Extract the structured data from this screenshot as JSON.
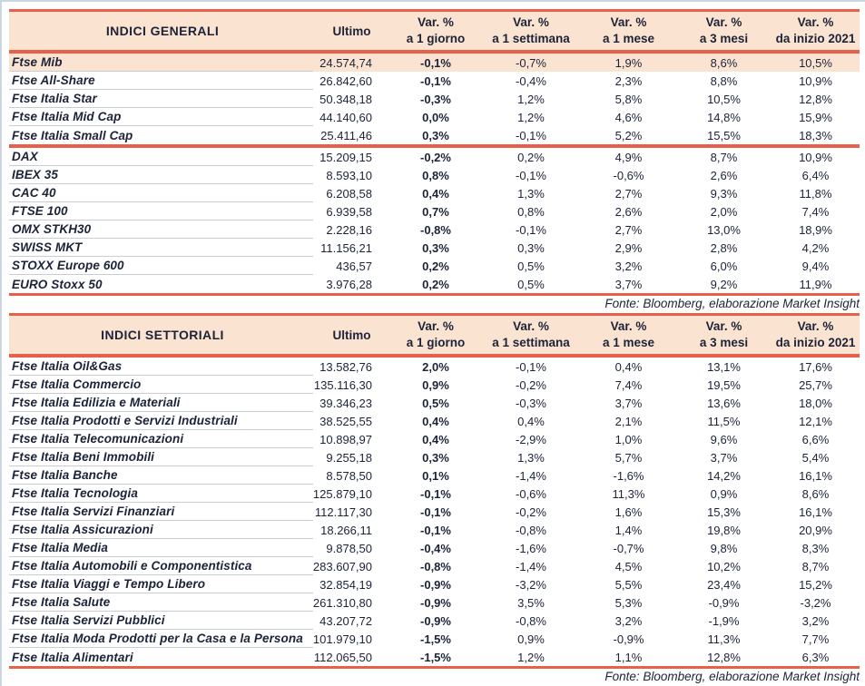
{
  "colors": {
    "accent": "#e6604a",
    "header_background": "#fbe3d2",
    "highlight_row_background": "#fbe3d2",
    "text": "#1c2338",
    "row_separator": "#c7ccd5",
    "frame": "#ccd6e3"
  },
  "columns": {
    "ultimo": "Ultimo",
    "vars": [
      {
        "line1": "Var. %",
        "line2": "a 1 giorno"
      },
      {
        "line1": "Var. %",
        "line2": "a 1 settimana"
      },
      {
        "line1": "Var. %",
        "line2": "a 1 mese"
      },
      {
        "line1": "Var. %",
        "line2": "a 3 mesi"
      },
      {
        "line1": "Var. %",
        "line2": "da inizio 2021"
      }
    ]
  },
  "tables": [
    {
      "title": "INDICI GENERALI",
      "source": "Fonte: Bloomberg, elaborazione Market Insight",
      "groups": [
        [
          {
            "name": "Ftse Mib",
            "highlight": true,
            "values": [
              "24.574,74",
              "-0,1%",
              "-0,7%",
              "1,9%",
              "8,6%",
              "10,5%"
            ]
          },
          {
            "name": "Ftse All-Share",
            "values": [
              "26.842,60",
              "-0,1%",
              "-0,4%",
              "2,3%",
              "8,8%",
              "10,9%"
            ]
          },
          {
            "name": "Ftse Italia Star",
            "values": [
              "50.348,18",
              "-0,3%",
              "1,2%",
              "5,8%",
              "10,5%",
              "12,8%"
            ]
          },
          {
            "name": "Ftse Italia Mid Cap",
            "values": [
              "44.140,60",
              "0,0%",
              "1,2%",
              "4,6%",
              "14,8%",
              "15,9%"
            ]
          },
          {
            "name": "Ftse Italia Small Cap",
            "values": [
              "25.411,46",
              "0,3%",
              "-0,1%",
              "5,2%",
              "15,5%",
              "18,3%"
            ]
          }
        ],
        [
          {
            "name": "DAX",
            "values": [
              "15.209,15",
              "-0,2%",
              "0,2%",
              "4,9%",
              "8,7%",
              "10,9%"
            ]
          },
          {
            "name": "IBEX 35",
            "values": [
              "8.593,10",
              "0,8%",
              "-0,1%",
              "-0,6%",
              "2,6%",
              "6,4%"
            ]
          },
          {
            "name": "CAC 40",
            "values": [
              "6.208,58",
              "0,4%",
              "1,3%",
              "2,7%",
              "9,3%",
              "11,8%"
            ]
          },
          {
            "name": "FTSE 100",
            "values": [
              "6.939,58",
              "0,7%",
              "0,8%",
              "2,6%",
              "2,0%",
              "7,4%"
            ]
          },
          {
            "name": "OMX STKH30",
            "values": [
              "2.228,16",
              "-0,8%",
              "-0,1%",
              "2,7%",
              "13,0%",
              "18,9%"
            ]
          },
          {
            "name": "SWISS MKT",
            "values": [
              "11.156,21",
              "0,3%",
              "0,3%",
              "2,9%",
              "2,8%",
              "4,2%"
            ]
          },
          {
            "name": "STOXX Europe 600",
            "values": [
              "436,57",
              "0,2%",
              "0,5%",
              "3,2%",
              "6,0%",
              "9,4%"
            ]
          },
          {
            "name": "EURO Stoxx 50",
            "values": [
              "3.976,28",
              "0,2%",
              "0,5%",
              "3,7%",
              "9,2%",
              "11,9%"
            ]
          }
        ]
      ]
    },
    {
      "title": "INDICI SETTORIALI",
      "source": "Fonte: Bloomberg, elaborazione Market Insight",
      "groups": [
        [
          {
            "name": "Ftse Italia Oil&Gas",
            "values": [
              "13.582,76",
              "2,0%",
              "-0,1%",
              "0,4%",
              "13,1%",
              "17,6%"
            ]
          },
          {
            "name": "Ftse Italia Commercio",
            "values": [
              "135.116,30",
              "0,9%",
              "-0,2%",
              "7,4%",
              "19,5%",
              "25,7%"
            ]
          },
          {
            "name": "Ftse Italia Edilizia e Materiali",
            "values": [
              "39.346,23",
              "0,5%",
              "-0,3%",
              "3,7%",
              "13,6%",
              "18,0%"
            ]
          },
          {
            "name": "Ftse Italia Prodotti e Servizi Industriali",
            "values": [
              "38.525,55",
              "0,4%",
              "0,4%",
              "2,1%",
              "11,5%",
              "12,1%"
            ]
          },
          {
            "name": "Ftse Italia Telecomunicazioni",
            "values": [
              "10.898,97",
              "0,4%",
              "-2,9%",
              "1,0%",
              "9,6%",
              "6,6%"
            ]
          },
          {
            "name": "Ftse Italia Beni Immobili",
            "values": [
              "9.255,18",
              "0,3%",
              "1,3%",
              "5,7%",
              "3,7%",
              "5,4%"
            ]
          },
          {
            "name": "Ftse Italia Banche",
            "values": [
              "8.578,50",
              "0,1%",
              "-1,4%",
              "-1,6%",
              "14,2%",
              "16,1%"
            ]
          },
          {
            "name": "Ftse Italia Tecnologia",
            "values": [
              "125.879,10",
              "-0,1%",
              "-0,6%",
              "11,3%",
              "0,9%",
              "8,6%"
            ]
          },
          {
            "name": "Ftse Italia Servizi Finanziari",
            "values": [
              "112.117,30",
              "-0,1%",
              "-0,2%",
              "1,6%",
              "15,3%",
              "16,1%"
            ]
          },
          {
            "name": "Ftse Italia Assicurazioni",
            "values": [
              "18.266,11",
              "-0,1%",
              "-0,8%",
              "1,4%",
              "19,8%",
              "20,9%"
            ]
          },
          {
            "name": "Ftse Italia Media",
            "values": [
              "9.878,50",
              "-0,4%",
              "-1,6%",
              "-0,7%",
              "9,8%",
              "8,3%"
            ]
          },
          {
            "name": "Ftse Italia Automobili e Componentistica",
            "values": [
              "283.607,90",
              "-0,8%",
              "-1,4%",
              "4,5%",
              "10,2%",
              "8,7%"
            ]
          },
          {
            "name": "Ftse Italia Viaggi e Tempo Libero",
            "values": [
              "32.854,19",
              "-0,9%",
              "-3,2%",
              "5,5%",
              "23,4%",
              "15,2%"
            ]
          },
          {
            "name": "Ftse Italia Salute",
            "values": [
              "261.310,80",
              "-0,9%",
              "3,5%",
              "5,3%",
              "-0,9%",
              "-3,2%"
            ]
          },
          {
            "name": "Ftse Italia Servizi Pubblici",
            "values": [
              "43.207,72",
              "-0,9%",
              "-0,8%",
              "3,2%",
              "-1,9%",
              "3,2%"
            ]
          },
          {
            "name": "Ftse Italia Moda Prodotti per la Casa e la Persona",
            "values": [
              "101.979,10",
              "-1,5%",
              "0,9%",
              "-0,9%",
              "11,3%",
              "7,7%"
            ]
          },
          {
            "name": "Ftse Italia Alimentari",
            "values": [
              "112.065,50",
              "-1,5%",
              "1,2%",
              "1,1%",
              "12,8%",
              "6,3%"
            ]
          }
        ]
      ]
    }
  ]
}
